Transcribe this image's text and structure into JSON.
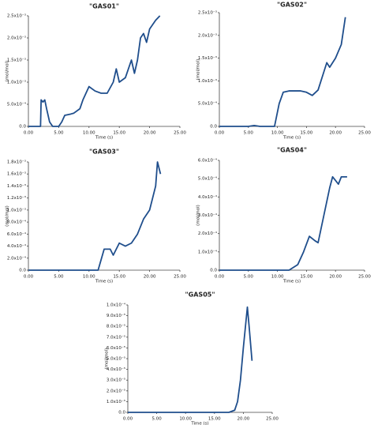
{
  "chart_data": [
    {
      "type": "line",
      "title": "\"GAS01\"",
      "x_label": "Time (s)",
      "y_label": "(mol/mol)",
      "color": "#1f4e8c",
      "x": [
        0,
        1,
        2,
        2.1,
        2.4,
        2.7,
        3,
        3.5,
        4,
        5,
        5.5,
        6,
        7,
        7.5,
        8.5,
        9,
        10,
        11,
        12,
        13,
        14,
        14.5,
        15,
        16,
        17,
        17.5,
        18,
        18.5,
        19,
        19.5,
        20,
        21,
        21.7
      ],
      "values": [
        0,
        0,
        0,
        0.0006,
        0.00055,
        0.0006,
        0.0004,
        0.0001,
        0,
        0,
        0.0001,
        0.00025,
        0.00028,
        0.0003,
        0.0004,
        0.0006,
        0.0009,
        0.0008,
        0.00075,
        0.00075,
        0.001,
        0.0013,
        0.001,
        0.0011,
        0.0015,
        0.0012,
        0.0015,
        0.002,
        0.0021,
        0.0019,
        0.0022,
        0.0024,
        0.0025
      ],
      "xlim": [
        0,
        25
      ],
      "xticks": [
        {
          "value": 0,
          "label": "0.00"
        },
        {
          "value": 5,
          "label": "5.00"
        },
        {
          "value": 10,
          "label": "10.00"
        },
        {
          "value": 15,
          "label": "15.00"
        },
        {
          "value": 20,
          "label": "20.00"
        },
        {
          "value": 25,
          "label": "25.00"
        }
      ],
      "ylim": [
        0,
        0.0025
      ],
      "yticks": [
        {
          "value": 0,
          "label": "0.0"
        },
        {
          "value": 0.0005,
          "label": "5.0x10⁻⁴"
        },
        {
          "value": 0.001,
          "label": "1.0x10⁻³"
        },
        {
          "value": 0.0015,
          "label": "1.5x10⁻³"
        },
        {
          "value": 0.002,
          "label": "2.0x10⁻³"
        },
        {
          "value": 0.0025,
          "label": "2.5x10⁻³"
        }
      ]
    },
    {
      "type": "line",
      "title": "\"GAS02\"",
      "x_label": "Time (s)",
      "y_label": "(mol/mol)",
      "color": "#1f4e8c",
      "x": [
        0,
        3,
        5,
        6,
        7,
        9.5,
        10.3,
        11,
        12,
        13,
        14,
        15,
        16,
        17,
        18,
        18.5,
        19,
        20,
        21,
        21.7
      ],
      "values": [
        0,
        0,
        0,
        2e-05,
        0,
        0,
        0.0005,
        0.00075,
        0.00078,
        0.00078,
        0.00078,
        0.00075,
        0.00068,
        0.0008,
        0.0012,
        0.0014,
        0.0013,
        0.0015,
        0.0018,
        0.0024
      ],
      "xlim": [
        0,
        25
      ],
      "xticks": [
        {
          "value": 0,
          "label": "0.00"
        },
        {
          "value": 5,
          "label": "5.00"
        },
        {
          "value": 10,
          "label": "10.00"
        },
        {
          "value": 15,
          "label": "15.00"
        },
        {
          "value": 20,
          "label": "20.00"
        },
        {
          "value": 25,
          "label": "25.00"
        }
      ],
      "ylim": [
        0,
        0.0025
      ],
      "yticks": [
        {
          "value": 0,
          "label": "0.0"
        },
        {
          "value": 0.0005,
          "label": "5.0x10⁻⁴"
        },
        {
          "value": 0.001,
          "label": "1.0x10⁻³"
        },
        {
          "value": 0.0015,
          "label": "1.5x10⁻³"
        },
        {
          "value": 0.002,
          "label": "2.0x10⁻³"
        },
        {
          "value": 0.0025,
          "label": "2.5x10⁻³"
        }
      ]
    },
    {
      "type": "line",
      "title": "\"GAS03\"",
      "x_label": "Time (s)",
      "y_label": "(mol/mol)",
      "color": "#1f4e8c",
      "x": [
        0,
        5,
        10,
        11.5,
        12.5,
        13.5,
        14,
        15,
        16,
        17,
        18,
        19,
        20,
        21,
        21.3,
        21.8
      ],
      "values": [
        0,
        0,
        0,
        0,
        0.00035,
        0.00035,
        0.00025,
        0.00045,
        0.0004,
        0.00045,
        0.0006,
        0.00085,
        0.001,
        0.0014,
        0.0018,
        0.0016
      ],
      "xlim": [
        0,
        25
      ],
      "xticks": [
        {
          "value": 0,
          "label": "0.00"
        },
        {
          "value": 5,
          "label": "5.00"
        },
        {
          "value": 10,
          "label": "10.00"
        },
        {
          "value": 15,
          "label": "15.00"
        },
        {
          "value": 20,
          "label": "20.00"
        },
        {
          "value": 25,
          "label": "25.00"
        }
      ],
      "ylim": [
        0,
        0.0018
      ],
      "yticks": [
        {
          "value": 0,
          "label": "0.0"
        },
        {
          "value": 0.0002,
          "label": "2.0x10⁻⁴"
        },
        {
          "value": 0.0004,
          "label": "4.0x10⁻⁴"
        },
        {
          "value": 0.0006,
          "label": "6.0x10⁻⁴"
        },
        {
          "value": 0.0008,
          "label": "8.0x10⁻⁴"
        },
        {
          "value": 0.001,
          "label": "1.0x10⁻³"
        },
        {
          "value": 0.0012,
          "label": "1.2x10⁻³"
        },
        {
          "value": 0.0014,
          "label": "1.4x10⁻³"
        },
        {
          "value": 0.0016,
          "label": "1.6x10⁻³"
        },
        {
          "value": 0.0018,
          "label": "1.8x10⁻³"
        }
      ]
    },
    {
      "type": "line",
      "title": "\"GAS04\"",
      "x_label": "Time (s)",
      "y_label": "(mol/mol)",
      "color": "#1f4e8c",
      "x": [
        0,
        5,
        10,
        12,
        13.5,
        14.5,
        15.5,
        16.5,
        17,
        18,
        19,
        19.5,
        20.5,
        21,
        22
      ],
      "values": [
        0,
        0,
        0,
        0,
        3e-05,
        0.0001,
        0.000185,
        0.00016,
        0.00015,
        0.0003,
        0.00045,
        0.00051,
        0.00047,
        0.00051,
        0.00051
      ],
      "xlim": [
        0,
        25
      ],
      "xticks": [
        {
          "value": 0,
          "label": "0.00"
        },
        {
          "value": 5,
          "label": "5.00"
        },
        {
          "value": 10,
          "label": "10.00"
        },
        {
          "value": 15,
          "label": "15.00"
        },
        {
          "value": 20,
          "label": "20.00"
        },
        {
          "value": 25,
          "label": "25.00"
        }
      ],
      "ylim": [
        0,
        0.0006
      ],
      "yticks": [
        {
          "value": 0,
          "label": "0.0"
        },
        {
          "value": 0.0001,
          "label": "1.0x10⁻⁴"
        },
        {
          "value": 0.0002,
          "label": "2.0x10⁻⁴"
        },
        {
          "value": 0.0003,
          "label": "3.0x10⁻⁴"
        },
        {
          "value": 0.0004,
          "label": "4.0x10⁻⁴"
        },
        {
          "value": 0.0005,
          "label": "5.0x10⁻⁴"
        },
        {
          "value": 0.0006,
          "label": "6.0x10⁻⁴"
        }
      ]
    },
    {
      "type": "line",
      "title": "\"GAS05\"",
      "x_label": "Time (s)",
      "y_label": "(mol/mol)",
      "color": "#1f4e8c",
      "x": [
        0,
        5,
        10,
        15,
        17.5,
        18.5,
        19,
        19.5,
        20,
        20.7,
        21,
        21.5
      ],
      "values": [
        0,
        0,
        0,
        0,
        0,
        2e-06,
        1e-05,
        3e-05,
        6e-05,
        9.8e-05,
        8e-05,
        4.8e-05
      ],
      "xlim": [
        0,
        25
      ],
      "xticks": [
        {
          "value": 0,
          "label": "0.00"
        },
        {
          "value": 5,
          "label": "5.00"
        },
        {
          "value": 10,
          "label": "10.00"
        },
        {
          "value": 15,
          "label": "15.00"
        },
        {
          "value": 20,
          "label": "20.00"
        },
        {
          "value": 25,
          "label": "25.00"
        }
      ],
      "ylim": [
        0,
        0.0001
      ],
      "yticks": [
        {
          "value": 0,
          "label": "0.0"
        },
        {
          "value": 1e-05,
          "label": "1.0x10⁻⁵"
        },
        {
          "value": 2e-05,
          "label": "2.0x10⁻⁵"
        },
        {
          "value": 3e-05,
          "label": "3.0x10⁻⁵"
        },
        {
          "value": 4e-05,
          "label": "4.0x10⁻⁵"
        },
        {
          "value": 5e-05,
          "label": "5.0x10⁻⁵"
        },
        {
          "value": 6e-05,
          "label": "6.0x10⁻⁵"
        },
        {
          "value": 7e-05,
          "label": "7.0x10⁻⁵"
        },
        {
          "value": 8e-05,
          "label": "8.0x10⁻⁵"
        },
        {
          "value": 9e-05,
          "label": "9.0x10⁻⁵"
        },
        {
          "value": 0.0001,
          "label": "1.0x10⁻⁴"
        }
      ]
    }
  ]
}
